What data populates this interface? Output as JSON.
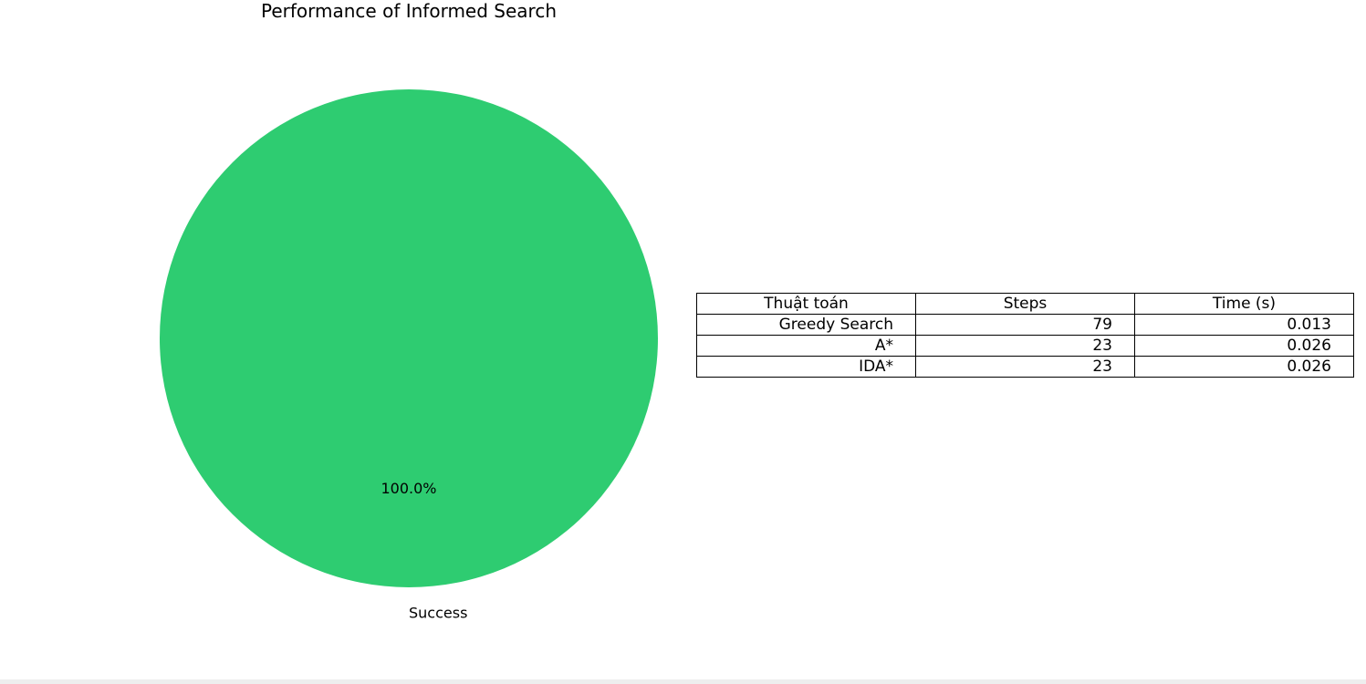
{
  "chart_data": {
    "type": "pie",
    "title": "Performance of Informed Search",
    "slices": [
      {
        "label": "Success",
        "value": 100.0,
        "pct_label": "100.0%",
        "color": "#2ecc71"
      }
    ],
    "table": {
      "columns": [
        "Thuật toán",
        "Steps",
        "Time (s)"
      ],
      "rows": [
        [
          "Greedy Search",
          "79",
          "0.013"
        ],
        [
          "A*",
          "23",
          "0.026"
        ],
        [
          "IDA*",
          "23",
          "0.026"
        ]
      ]
    }
  }
}
